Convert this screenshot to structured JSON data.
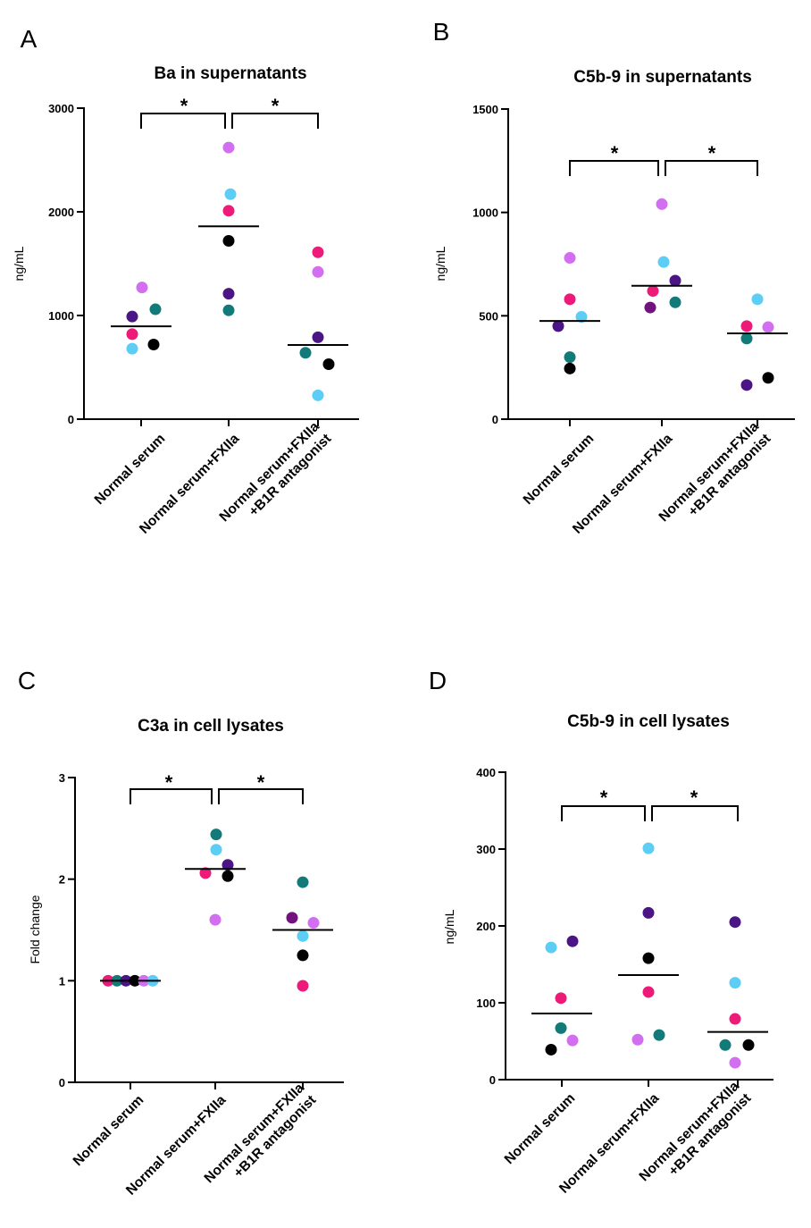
{
  "colors": {
    "violet": "#d26ef0",
    "sky": "#5ccdf5",
    "magenta": "#ee1a7a",
    "black": "#000000",
    "indigo": "#4b1586",
    "teal": "#137a7a",
    "purple": "#72127f"
  },
  "chart_data": [
    {
      "panel": "A",
      "type": "scatter",
      "title": "Ba in supernatants",
      "ylabel": "ng/mL",
      "ylim": [
        0,
        3000
      ],
      "yticks": [
        0,
        1000,
        2000,
        3000
      ],
      "categories": [
        "Normal serum",
        "Normal serum+FXIIa",
        "Normal serum+FXIIa\n+B1R antagonist"
      ],
      "means": [
        895,
        1860,
        715
      ],
      "points": [
        [
          {
            "color": "violet",
            "value": 1270
          },
          {
            "color": "teal",
            "value": 1060
          },
          {
            "color": "indigo",
            "value": 990
          },
          {
            "color": "magenta",
            "value": 820
          },
          {
            "color": "black",
            "value": 720
          },
          {
            "color": "sky",
            "value": 680
          }
        ],
        [
          {
            "color": "violet",
            "value": 2620
          },
          {
            "color": "sky",
            "value": 2170
          },
          {
            "color": "magenta",
            "value": 2010
          },
          {
            "color": "black",
            "value": 1720
          },
          {
            "color": "indigo",
            "value": 1210
          },
          {
            "color": "teal",
            "value": 1050
          }
        ],
        [
          {
            "color": "magenta",
            "value": 1610
          },
          {
            "color": "violet",
            "value": 1420
          },
          {
            "color": "indigo",
            "value": 790
          },
          {
            "color": "teal",
            "value": 640
          },
          {
            "color": "black",
            "value": 530
          },
          {
            "color": "sky",
            "value": 230
          }
        ]
      ],
      "significance": [
        {
          "from": 0,
          "to": 1,
          "label": "*"
        },
        {
          "from": 1,
          "to": 2,
          "label": "*"
        }
      ]
    },
    {
      "panel": "B",
      "type": "scatter",
      "title": "C5b-9 in supernatants",
      "ylabel": "ng/mL",
      "ylim": [
        0,
        1500
      ],
      "yticks": [
        0,
        500,
        1000,
        1500
      ],
      "categories": [
        "Normal serum",
        "Normal serum+FXIIa",
        "Normal serum+FXIIa\n+B1R antagonist"
      ],
      "means": [
        475,
        645,
        415
      ],
      "points": [
        [
          {
            "color": "violet",
            "value": 780
          },
          {
            "color": "magenta",
            "value": 580
          },
          {
            "color": "sky",
            "value": 495
          },
          {
            "color": "indigo",
            "value": 450
          },
          {
            "color": "teal",
            "value": 300
          },
          {
            "color": "black",
            "value": 245
          }
        ],
        [
          {
            "color": "violet",
            "value": 1040
          },
          {
            "color": "sky",
            "value": 760
          },
          {
            "color": "indigo",
            "value": 670
          },
          {
            "color": "magenta",
            "value": 620
          },
          {
            "color": "teal",
            "value": 565
          },
          {
            "color": "purple",
            "value": 540
          }
        ],
        [
          {
            "color": "sky",
            "value": 580
          },
          {
            "color": "magenta",
            "value": 450
          },
          {
            "color": "violet",
            "value": 445
          },
          {
            "color": "teal",
            "value": 390
          },
          {
            "color": "black",
            "value": 200
          },
          {
            "color": "indigo",
            "value": 165
          }
        ]
      ],
      "significance": [
        {
          "from": 0,
          "to": 1,
          "label": "*"
        },
        {
          "from": 1,
          "to": 2,
          "label": "*"
        }
      ]
    },
    {
      "panel": "C",
      "type": "scatter",
      "title": "C3a in cell lysates",
      "ylabel": "Fold change",
      "ylim": [
        0,
        3
      ],
      "yticks": [
        0,
        1,
        2,
        3
      ],
      "categories": [
        "Normal serum",
        "Normal serum+FXIIa",
        "Normal serum+FXIIa\n+B1R antagonist"
      ],
      "means": [
        1.0,
        2.1,
        1.5
      ],
      "points": [
        [
          {
            "color": "magenta",
            "value": 1.0
          },
          {
            "color": "teal",
            "value": 1.0
          },
          {
            "color": "indigo",
            "value": 1.0
          },
          {
            "color": "black",
            "value": 1.0
          },
          {
            "color": "violet",
            "value": 1.0
          },
          {
            "color": "sky",
            "value": 1.0
          }
        ],
        [
          {
            "color": "teal",
            "value": 2.44
          },
          {
            "color": "sky",
            "value": 2.29
          },
          {
            "color": "indigo",
            "value": 2.14
          },
          {
            "color": "magenta",
            "value": 2.06
          },
          {
            "color": "black",
            "value": 2.03
          },
          {
            "color": "violet",
            "value": 1.6
          }
        ],
        [
          {
            "color": "teal",
            "value": 1.97
          },
          {
            "color": "purple",
            "value": 1.62
          },
          {
            "color": "violet",
            "value": 1.57
          },
          {
            "color": "sky",
            "value": 1.44
          },
          {
            "color": "black",
            "value": 1.25
          },
          {
            "color": "magenta",
            "value": 0.95
          }
        ]
      ],
      "significance": [
        {
          "from": 0,
          "to": 1,
          "label": "*"
        },
        {
          "from": 1,
          "to": 2,
          "label": "*"
        }
      ]
    },
    {
      "panel": "D",
      "type": "scatter",
      "title": "C5b-9 in cell lysates",
      "ylabel": "ng/mL",
      "ylim": [
        0,
        400
      ],
      "yticks": [
        0,
        100,
        200,
        300,
        400
      ],
      "categories": [
        "Normal serum",
        "Normal serum+FXIIa",
        "Normal serum+FXIIa\n+B1R antagonist"
      ],
      "means": [
        86,
        136,
        62
      ],
      "points": [
        [
          {
            "color": "indigo",
            "value": 180
          },
          {
            "color": "sky",
            "value": 172
          },
          {
            "color": "magenta",
            "value": 106
          },
          {
            "color": "teal",
            "value": 67
          },
          {
            "color": "violet",
            "value": 51
          },
          {
            "color": "black",
            "value": 39
          }
        ],
        [
          {
            "color": "sky",
            "value": 301
          },
          {
            "color": "indigo",
            "value": 217
          },
          {
            "color": "black",
            "value": 158
          },
          {
            "color": "magenta",
            "value": 114
          },
          {
            "color": "teal",
            "value": 58
          },
          {
            "color": "violet",
            "value": 52
          }
        ],
        [
          {
            "color": "indigo",
            "value": 205
          },
          {
            "color": "sky",
            "value": 126
          },
          {
            "color": "magenta",
            "value": 79
          },
          {
            "color": "teal",
            "value": 45
          },
          {
            "color": "black",
            "value": 45
          },
          {
            "color": "violet",
            "value": 22
          }
        ]
      ],
      "significance": [
        {
          "from": 0,
          "to": 1,
          "label": "*"
        },
        {
          "from": 1,
          "to": 2,
          "label": "*"
        }
      ]
    }
  ]
}
